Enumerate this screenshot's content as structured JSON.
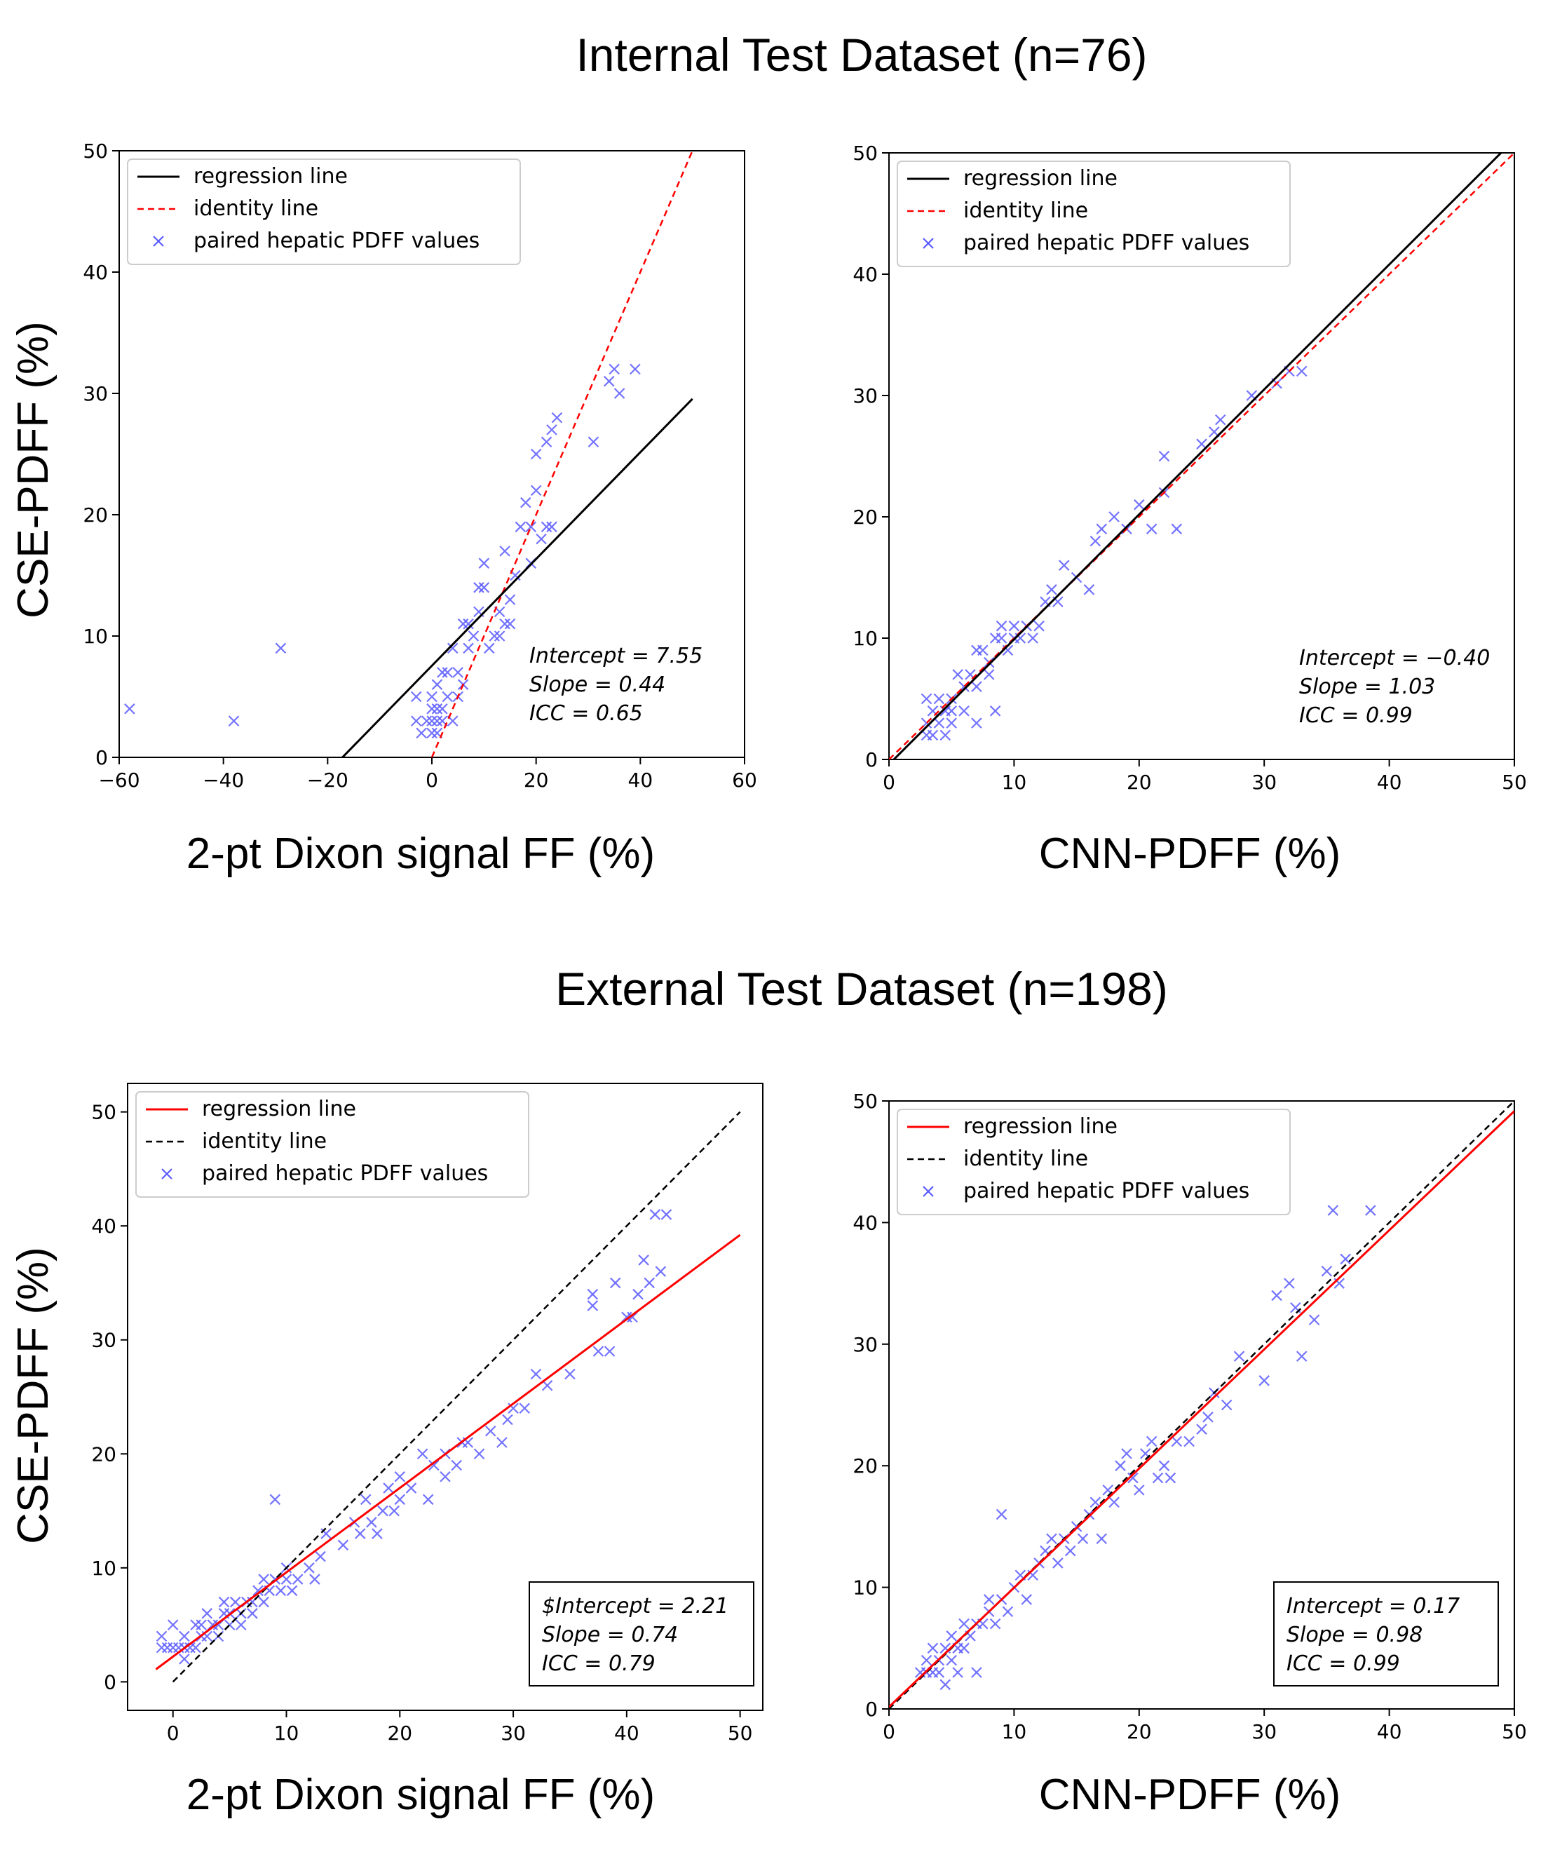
{
  "titles": {
    "internal": "Internal Test Dataset (n=76)",
    "external": "External Test Dataset (n=198)"
  },
  "legend": {
    "regression": "regression line",
    "identity": "identity line",
    "points": "paired hepatic PDFF values"
  },
  "colors": {
    "black": "#000000",
    "red": "#ff0000",
    "marker": "#5a5aff"
  },
  "chart_data": [
    {
      "id": "internal-dixon",
      "type": "scatter",
      "xlabel": "2-pt Dixon signal FF (%)",
      "ylabel": "CSE-PDFF (%)",
      "xlim": [
        -60,
        60
      ],
      "ylim": [
        0,
        50
      ],
      "xticks": [
        -60,
        -40,
        -20,
        0,
        20,
        40,
        60
      ],
      "yticks": [
        0,
        10,
        20,
        30,
        40,
        50
      ],
      "grid": false,
      "legend_position": "upper-left",
      "regression": {
        "intercept": 7.55,
        "slope": 0.44,
        "x_range": [
          -17.2,
          50
        ],
        "color": "#000000",
        "style": "solid"
      },
      "identity": {
        "x_range": [
          0,
          50
        ],
        "color": "#ff0000",
        "style": "dashed"
      },
      "stats": [
        "Intercept = 7.55",
        "Slope = 0.44",
        "ICC = 0.65"
      ],
      "stats_box": false,
      "points": [
        [
          -58,
          4
        ],
        [
          -38,
          3
        ],
        [
          -29,
          9
        ],
        [
          -3,
          5
        ],
        [
          -3,
          3
        ],
        [
          -2,
          2
        ],
        [
          -1,
          3
        ],
        [
          0,
          2
        ],
        [
          0,
          3
        ],
        [
          0,
          4
        ],
        [
          0,
          5
        ],
        [
          1,
          2
        ],
        [
          1,
          3
        ],
        [
          1,
          4
        ],
        [
          1,
          6
        ],
        [
          2,
          3
        ],
        [
          2,
          4
        ],
        [
          2,
          7
        ],
        [
          3,
          5
        ],
        [
          3,
          7
        ],
        [
          4,
          3
        ],
        [
          4,
          9
        ],
        [
          5,
          5
        ],
        [
          5,
          7
        ],
        [
          6,
          6
        ],
        [
          6,
          11
        ],
        [
          7,
          9
        ],
        [
          7,
          11
        ],
        [
          8,
          10
        ],
        [
          9,
          12
        ],
        [
          9,
          14
        ],
        [
          10,
          14
        ],
        [
          10,
          16
        ],
        [
          11,
          9
        ],
        [
          12,
          10
        ],
        [
          13,
          10
        ],
        [
          13,
          12
        ],
        [
          14,
          11
        ],
        [
          14,
          17
        ],
        [
          15,
          13
        ],
        [
          15,
          11
        ],
        [
          16,
          15
        ],
        [
          17,
          19
        ],
        [
          18,
          21
        ],
        [
          19,
          19
        ],
        [
          19,
          16
        ],
        [
          20,
          22
        ],
        [
          20,
          25
        ],
        [
          21,
          18
        ],
        [
          22,
          19
        ],
        [
          22,
          26
        ],
        [
          23,
          19
        ],
        [
          23,
          27
        ],
        [
          24,
          28
        ],
        [
          31,
          26
        ],
        [
          34,
          31
        ],
        [
          35,
          32
        ],
        [
          36,
          30
        ],
        [
          39,
          32
        ]
      ]
    },
    {
      "id": "internal-cnn",
      "type": "scatter",
      "xlabel": "CNN-PDFF (%)",
      "ylabel": "",
      "xlim": [
        0,
        50
      ],
      "ylim": [
        0,
        50
      ],
      "xticks": [
        0,
        10,
        20,
        30,
        40,
        50
      ],
      "yticks": [
        0,
        10,
        20,
        30,
        40,
        50
      ],
      "grid": false,
      "legend_position": "upper-left",
      "regression": {
        "intercept": -0.4,
        "slope": 1.03,
        "x_range": [
          0,
          50
        ],
        "color": "#000000",
        "style": "solid"
      },
      "identity": {
        "x_range": [
          0,
          50
        ],
        "color": "#ff0000",
        "style": "dashed"
      },
      "stats": [
        "Intercept = −0.40",
        "Slope = 1.03",
        "ICC = 0.99"
      ],
      "stats_box": false,
      "points": [
        [
          3,
          5
        ],
        [
          3,
          3
        ],
        [
          3,
          2
        ],
        [
          3.5,
          4
        ],
        [
          3.5,
          2
        ],
        [
          4,
          3
        ],
        [
          4,
          5
        ],
        [
          4.5,
          2
        ],
        [
          4.5,
          4
        ],
        [
          5,
          3
        ],
        [
          5,
          4
        ],
        [
          5,
          5
        ],
        [
          5.5,
          7
        ],
        [
          6,
          6
        ],
        [
          6,
          4
        ],
        [
          6.5,
          7
        ],
        [
          7,
          3
        ],
        [
          7,
          6
        ],
        [
          7,
          9
        ],
        [
          7.5,
          9
        ],
        [
          8,
          7
        ],
        [
          8,
          8
        ],
        [
          8.5,
          10
        ],
        [
          8.5,
          4
        ],
        [
          9,
          11
        ],
        [
          9,
          10
        ],
        [
          9.5,
          9
        ],
        [
          10,
          10
        ],
        [
          10,
          11
        ],
        [
          10.5,
          10
        ],
        [
          11,
          11
        ],
        [
          11.5,
          10
        ],
        [
          12,
          11
        ],
        [
          12.5,
          13
        ],
        [
          13,
          14
        ],
        [
          13.5,
          13
        ],
        [
          14,
          16
        ],
        [
          15,
          15
        ],
        [
          16,
          14
        ],
        [
          16.5,
          18
        ],
        [
          17,
          19
        ],
        [
          18,
          20
        ],
        [
          19,
          19
        ],
        [
          20,
          21
        ],
        [
          21,
          19
        ],
        [
          22,
          25
        ],
        [
          22,
          22
        ],
        [
          23,
          19
        ],
        [
          25,
          26
        ],
        [
          26,
          27
        ],
        [
          26.5,
          28
        ],
        [
          29,
          30
        ],
        [
          31,
          31
        ],
        [
          32,
          32
        ],
        [
          33,
          32
        ]
      ]
    },
    {
      "id": "external-dixon",
      "type": "scatter",
      "xlabel": "2-pt Dixon signal FF (%)",
      "ylabel": "CSE-PDFF (%)",
      "xlim": [
        -4,
        52
      ],
      "ylim": [
        -2.5,
        52.5
      ],
      "xticks": [
        0,
        10,
        20,
        30,
        40,
        50
      ],
      "yticks": [
        0,
        10,
        20,
        30,
        40,
        50
      ],
      "grid": false,
      "legend_position": "upper-left",
      "regression": {
        "intercept": 2.21,
        "slope": 0.74,
        "x_range": [
          -1.5,
          50
        ],
        "color": "#ff0000",
        "style": "solid"
      },
      "identity": {
        "x_range": [
          0,
          50
        ],
        "color": "#000000",
        "style": "dashed"
      },
      "stats": [
        "$Intercept = 2.21",
        "Slope = 0.74",
        "ICC = 0.79"
      ],
      "stats_box": true,
      "points": [
        [
          -1,
          3
        ],
        [
          -1,
          4
        ],
        [
          -0.5,
          3
        ],
        [
          0,
          3
        ],
        [
          0,
          5
        ],
        [
          0.5,
          3
        ],
        [
          1,
          2
        ],
        [
          1,
          3
        ],
        [
          1,
          4
        ],
        [
          1.5,
          3
        ],
        [
          2,
          3
        ],
        [
          2,
          5
        ],
        [
          2.5,
          4
        ],
        [
          2.5,
          5
        ],
        [
          3,
          4
        ],
        [
          3,
          6
        ],
        [
          3.5,
          5
        ],
        [
          4,
          4
        ],
        [
          4,
          5
        ],
        [
          4.5,
          6
        ],
        [
          4.5,
          7
        ],
        [
          5,
          5
        ],
        [
          5,
          6
        ],
        [
          5.5,
          7
        ],
        [
          6,
          6
        ],
        [
          6,
          5
        ],
        [
          6.5,
          7
        ],
        [
          7,
          6
        ],
        [
          7,
          7
        ],
        [
          7.5,
          8
        ],
        [
          8,
          7
        ],
        [
          8,
          9
        ],
        [
          8.5,
          8
        ],
        [
          9,
          9
        ],
        [
          9,
          16
        ],
        [
          9.5,
          8
        ],
        [
          10,
          9
        ],
        [
          10,
          10
        ],
        [
          10.5,
          8
        ],
        [
          11,
          9
        ],
        [
          12,
          10
        ],
        [
          12.5,
          9
        ],
        [
          13,
          11
        ],
        [
          13.5,
          13
        ],
        [
          15,
          12
        ],
        [
          16,
          14
        ],
        [
          16.5,
          13
        ],
        [
          17,
          16
        ],
        [
          17.5,
          14
        ],
        [
          18,
          13
        ],
        [
          18.5,
          15
        ],
        [
          19,
          17
        ],
        [
          19.5,
          15
        ],
        [
          20,
          16
        ],
        [
          20,
          18
        ],
        [
          21,
          17
        ],
        [
          22,
          20
        ],
        [
          22.5,
          16
        ],
        [
          23,
          19
        ],
        [
          24,
          18
        ],
        [
          24,
          20
        ],
        [
          25,
          19
        ],
        [
          25.5,
          21
        ],
        [
          26,
          21
        ],
        [
          27,
          20
        ],
        [
          28,
          22
        ],
        [
          29,
          21
        ],
        [
          29.5,
          23
        ],
        [
          30,
          24
        ],
        [
          31,
          24
        ],
        [
          32,
          27
        ],
        [
          33,
          26
        ],
        [
          35,
          27
        ],
        [
          37,
          34
        ],
        [
          37,
          33
        ],
        [
          37.5,
          29
        ],
        [
          38.5,
          29
        ],
        [
          39,
          35
        ],
        [
          40,
          32
        ],
        [
          40.5,
          32
        ],
        [
          41,
          34
        ],
        [
          41.5,
          37
        ],
        [
          42,
          35
        ],
        [
          42.5,
          41
        ],
        [
          43,
          36
        ],
        [
          43.5,
          41
        ]
      ]
    },
    {
      "id": "external-cnn",
      "type": "scatter",
      "xlabel": "CNN-PDFF (%)",
      "ylabel": "",
      "xlim": [
        0,
        50
      ],
      "ylim": [
        0,
        50
      ],
      "xticks": [
        0,
        10,
        20,
        30,
        40,
        50
      ],
      "yticks": [
        0,
        10,
        20,
        30,
        40,
        50
      ],
      "grid": false,
      "legend_position": "upper-left",
      "regression": {
        "intercept": 0.17,
        "slope": 0.98,
        "x_range": [
          0,
          50
        ],
        "color": "#ff0000",
        "style": "solid"
      },
      "identity": {
        "x_range": [
          0,
          50
        ],
        "color": "#000000",
        "style": "dashed"
      },
      "stats": [
        "Intercept = 0.17",
        "Slope = 0.98",
        "ICC = 0.99"
      ],
      "stats_box": true,
      "points": [
        [
          2.5,
          3
        ],
        [
          3,
          3
        ],
        [
          3,
          4
        ],
        [
          3.5,
          3
        ],
        [
          3.5,
          5
        ],
        [
          4,
          4
        ],
        [
          4,
          3
        ],
        [
          4.5,
          5
        ],
        [
          4.5,
          2
        ],
        [
          5,
          4
        ],
        [
          5,
          6
        ],
        [
          5.5,
          3
        ],
        [
          5.5,
          5
        ],
        [
          6,
          5
        ],
        [
          6,
          7
        ],
        [
          6.5,
          6
        ],
        [
          7,
          3
        ],
        [
          7,
          7
        ],
        [
          7.5,
          7
        ],
        [
          8,
          8
        ],
        [
          8,
          9
        ],
        [
          8.5,
          7
        ],
        [
          9,
          9
        ],
        [
          9,
          16
        ],
        [
          9.5,
          8
        ],
        [
          10,
          10
        ],
        [
          10.5,
          11
        ],
        [
          11,
          9
        ],
        [
          11.5,
          11
        ],
        [
          12,
          12
        ],
        [
          12.5,
          13
        ],
        [
          13,
          14
        ],
        [
          13.5,
          12
        ],
        [
          14,
          14
        ],
        [
          14.5,
          13
        ],
        [
          15,
          15
        ],
        [
          15.5,
          14
        ],
        [
          16,
          16
        ],
        [
          16.5,
          17
        ],
        [
          17,
          14
        ],
        [
          17.5,
          18
        ],
        [
          18,
          17
        ],
        [
          18.5,
          20
        ],
        [
          19,
          21
        ],
        [
          19.5,
          19
        ],
        [
          20,
          18
        ],
        [
          20.5,
          21
        ],
        [
          21,
          22
        ],
        [
          21.5,
          19
        ],
        [
          22,
          20
        ],
        [
          22.5,
          19
        ],
        [
          23,
          22
        ],
        [
          24,
          22
        ],
        [
          25,
          23
        ],
        [
          25.5,
          24
        ],
        [
          26,
          26
        ],
        [
          27,
          25
        ],
        [
          28,
          29
        ],
        [
          30,
          27
        ],
        [
          31,
          34
        ],
        [
          32,
          35
        ],
        [
          32.5,
          33
        ],
        [
          33,
          29
        ],
        [
          34,
          32
        ],
        [
          35,
          36
        ],
        [
          35.5,
          41
        ],
        [
          36,
          35
        ],
        [
          36.5,
          37
        ],
        [
          38.5,
          41
        ]
      ]
    }
  ]
}
